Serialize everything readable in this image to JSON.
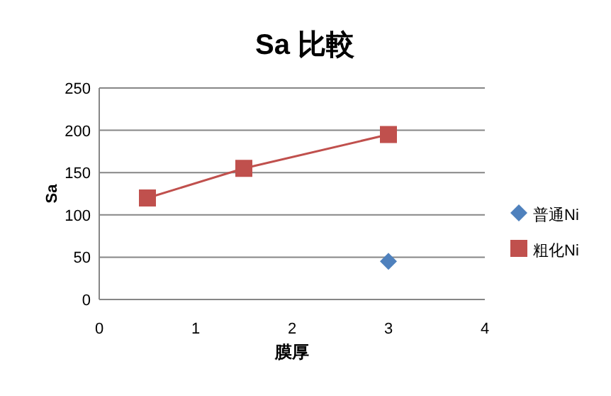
{
  "chart_data": {
    "type": "scatter",
    "title": "Sa  比較",
    "xlabel": "膜厚",
    "ylabel": "Sa",
    "xlim": [
      0,
      4
    ],
    "xticks": [
      0,
      1,
      2,
      3,
      4
    ],
    "ylim": [
      0,
      250
    ],
    "yticks": [
      0,
      50,
      100,
      150,
      200,
      250
    ],
    "grid": "y",
    "legend": "right",
    "series": [
      {
        "name": "普通Ni",
        "color": "#4f81bd",
        "marker": "diamond",
        "line_style": "none",
        "x": [
          3
        ],
        "values": [
          45
        ]
      },
      {
        "name": "粗化Ni",
        "type": "line",
        "color": "#c0504d",
        "marker": "square",
        "line_style": "solid",
        "x": [
          0.5,
          1.5,
          3
        ],
        "values": [
          120,
          155,
          195
        ]
      }
    ]
  }
}
